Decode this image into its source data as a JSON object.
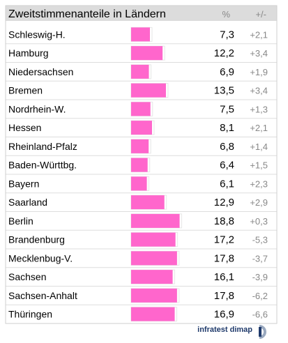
{
  "chart_data": {
    "type": "bar",
    "title": "Zweitstimmenanteile in Ländern",
    "value_header": "%",
    "change_header": "+/-",
    "categories": [
      "Schleswig-H.",
      "Hamburg",
      "Niedersachsen",
      "Bremen",
      "Nordrhein-W.",
      "Hessen",
      "Rheinland-Pfalz",
      "Baden-Württbg.",
      "Bayern",
      "Saarland",
      "Berlin",
      "Brandenburg",
      "Mecklenbug-V.",
      "Sachsen",
      "Sachsen-Anhalt",
      "Thüringen"
    ],
    "values": [
      7.3,
      12.2,
      6.9,
      13.5,
      7.5,
      8.1,
      6.8,
      6.4,
      6.1,
      12.9,
      18.8,
      17.2,
      17.8,
      16.1,
      17.8,
      16.9
    ],
    "value_labels": [
      "7,3",
      "12,2",
      "6,9",
      "13,5",
      "7,5",
      "8,1",
      "6,8",
      "6,4",
      "6,1",
      "12,9",
      "18,8",
      "17,2",
      "17,8",
      "16,1",
      "17,8",
      "16,9"
    ],
    "changes": [
      "+2,1",
      "+3,4",
      "+1,9",
      "+3,4",
      "+1,3",
      "+2,1",
      "+1,4",
      "+1,5",
      "+2,3",
      "+2,9",
      "+0,3",
      "-5,3",
      "-3,7",
      "-3,9",
      "-6,2",
      "-6,6"
    ],
    "bar_color": "#ff66cc",
    "orientation": "horizontal"
  },
  "footer": {
    "brand": "infratest dimap"
  }
}
